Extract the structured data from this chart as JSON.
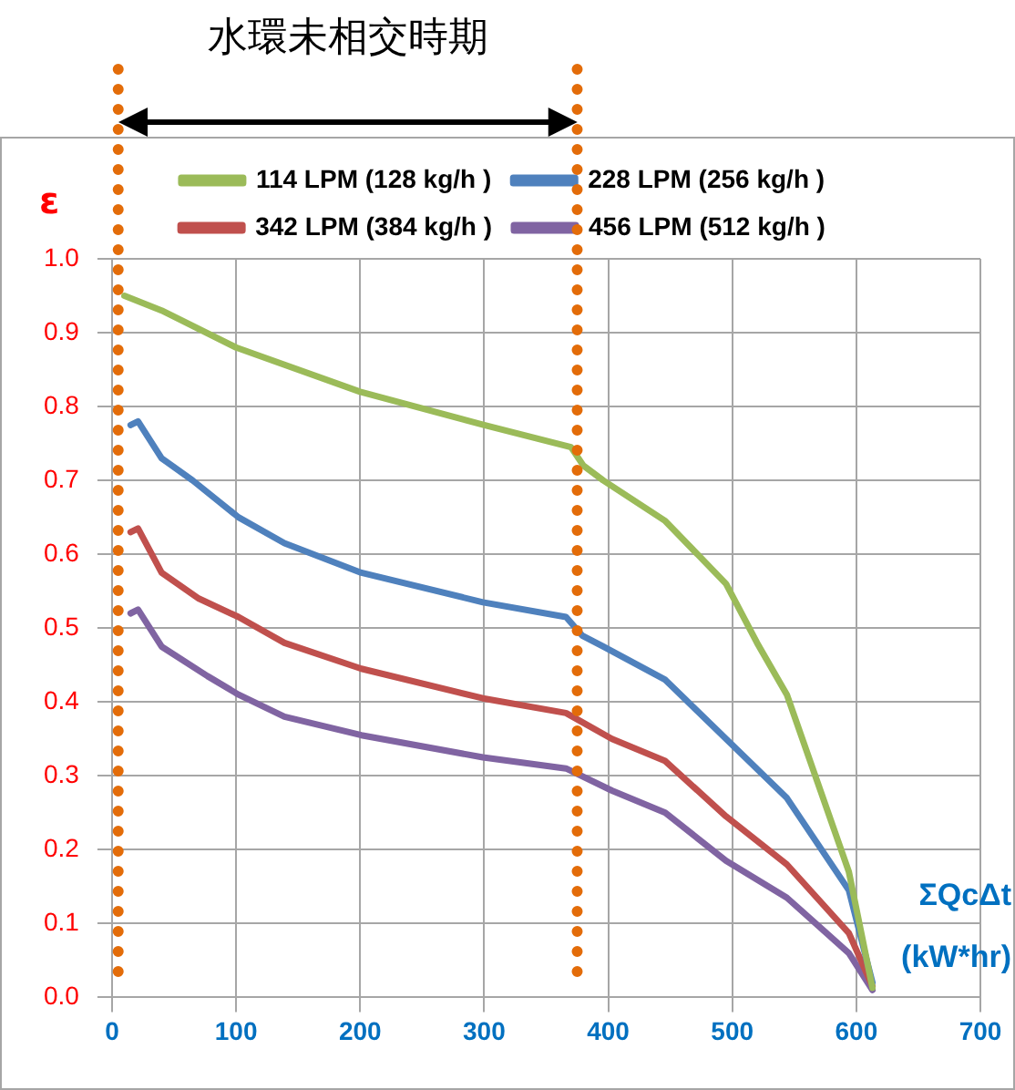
{
  "chart_data": {
    "type": "line",
    "xlabel": "ΣQcΔt (kW*hr)",
    "ylabel": "ε",
    "annotations": [
      "水環未相交時期"
    ],
    "xlim": [
      0,
      700
    ],
    "xticks": [
      0,
      100,
      200,
      300,
      400,
      500,
      600,
      700
    ],
    "ylim": [
      0,
      1.0
    ],
    "yticks": [
      {
        "value": 0,
        "label": "0.0"
      },
      {
        "value": 0.1,
        "label": "0.1"
      },
      {
        "value": 0.2,
        "label": "0.2"
      },
      {
        "value": 0.3,
        "label": "0.3"
      },
      {
        "value": 0.4,
        "label": "0.4"
      },
      {
        "value": 0.5,
        "label": "0.5"
      },
      {
        "value": 0.6,
        "label": "0.6"
      },
      {
        "value": 0.7,
        "label": "0.7"
      },
      {
        "value": 0.8,
        "label": "0.8"
      },
      {
        "value": 0.9,
        "label": "0.9"
      },
      {
        "value": 1.0,
        "label": "1.0"
      }
    ],
    "grid": true,
    "legend": "top",
    "marker": "none",
    "line_style": "solid",
    "ref_lines": [
      {
        "axis": "x",
        "value": 5,
        "color": "#e36c09",
        "line_style": "dotted"
      },
      {
        "axis": "x",
        "value": 375,
        "color": "#e36c09",
        "line_style": "dotted"
      }
    ],
    "series": [
      {
        "name": "114 LPM (128 kg/h )",
        "color": "#9bbb59",
        "x": [
          10,
          40,
          100,
          200,
          300,
          370,
          380,
          396,
          446,
          495,
          520,
          544,
          569,
          594,
          613
        ],
        "values": [
          0.95,
          0.93,
          0.88,
          0.82,
          0.775,
          0.745,
          0.72,
          0.7,
          0.645,
          0.56,
          0.48,
          0.41,
          0.29,
          0.17,
          0.013
        ]
      },
      {
        "name": "228 LPM (256 kg/h )",
        "color": "#4f81bd",
        "x": [
          15,
          21,
          40,
          65,
          102,
          139,
          201,
          299,
          366,
          379,
          396,
          446,
          495,
          544,
          594,
          613
        ],
        "values": [
          0.775,
          0.78,
          0.73,
          0.7,
          0.65,
          0.615,
          0.575,
          0.535,
          0.515,
          0.49,
          0.475,
          0.43,
          0.35,
          0.27,
          0.145,
          0.02
        ]
      },
      {
        "name": "342 LPM (384 kg/h )",
        "color": "#c0504d",
        "x": [
          15,
          21,
          40,
          70,
          102,
          139,
          201,
          299,
          366,
          403,
          446,
          495,
          544,
          594,
          613
        ],
        "values": [
          0.63,
          0.635,
          0.575,
          0.54,
          0.515,
          0.48,
          0.445,
          0.405,
          0.385,
          0.35,
          0.32,
          0.245,
          0.18,
          0.087,
          0.015
        ]
      },
      {
        "name": "456 LPM (512 kg/h )",
        "color": "#8064a2",
        "x": [
          15,
          21,
          40,
          77,
          102,
          139,
          201,
          299,
          366,
          403,
          446,
          495,
          544,
          594,
          613
        ],
        "values": [
          0.52,
          0.525,
          0.475,
          0.435,
          0.41,
          0.38,
          0.355,
          0.325,
          0.31,
          0.28,
          0.25,
          0.185,
          0.135,
          0.06,
          0.01
        ]
      }
    ]
  }
}
